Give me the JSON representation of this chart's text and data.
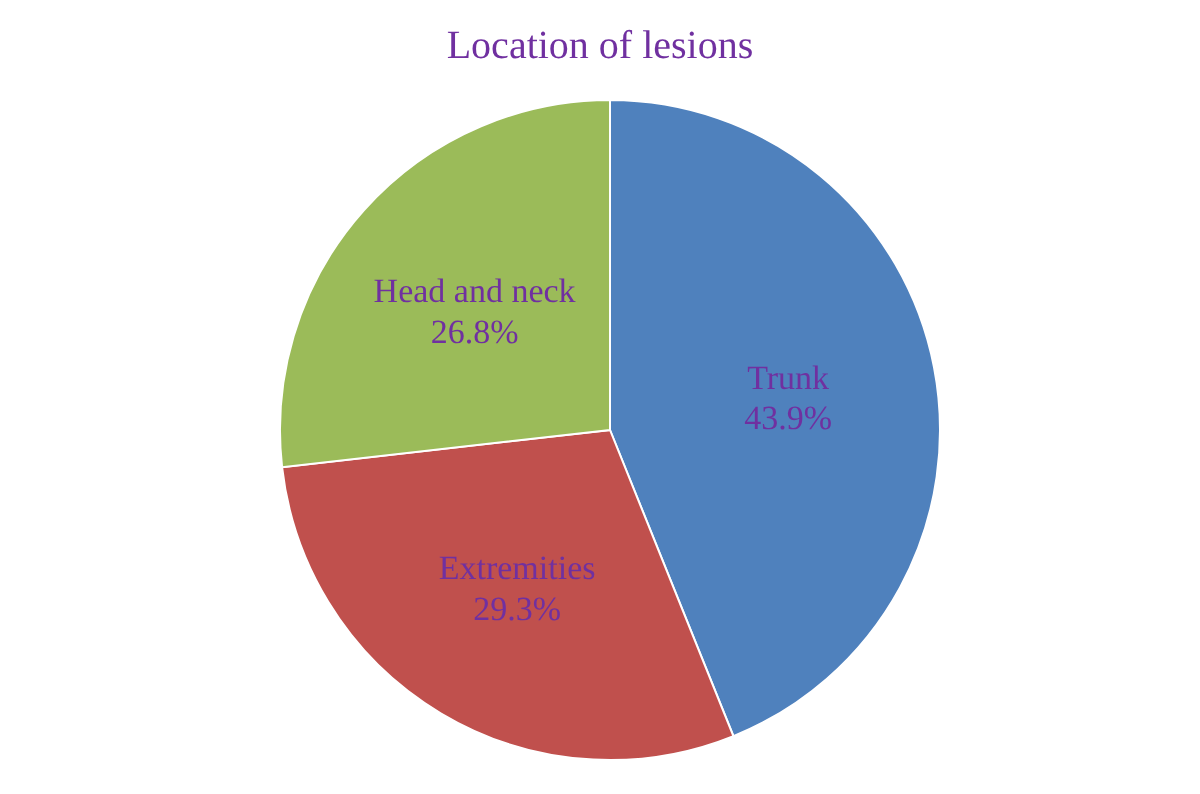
{
  "chart_data": {
    "type": "pie",
    "title": "Location of lesions",
    "categories": [
      "Trunk",
      "Extremities",
      "Head and neck"
    ],
    "values": [
      43.9,
      29.3,
      26.8
    ],
    "value_labels": [
      "43.9%",
      "29.3%",
      "26.8%"
    ],
    "colors": [
      "#4f81bd",
      "#c0504d",
      "#9bbb59"
    ],
    "legend": false
  }
}
